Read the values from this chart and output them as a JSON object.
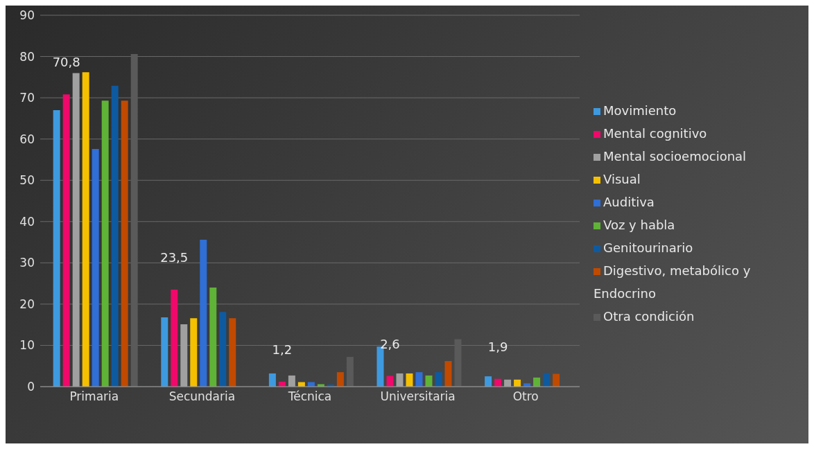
{
  "chart_data": {
    "type": "bar",
    "categories": [
      "Primaria",
      "Secundaria",
      "Técnica",
      "Universitaria",
      "Otro"
    ],
    "series": [
      {
        "name": "Movimiento",
        "color": "#3e9ae0",
        "values": [
          67,
          16.8,
          3.2,
          9.7,
          2.5
        ]
      },
      {
        "name": "Mental cognitivo",
        "color": "#f0086a",
        "values": [
          70.8,
          23.5,
          1.2,
          2.6,
          1.9
        ],
        "value_labels": [
          "70,8",
          "23,5",
          "1,2",
          "2,6",
          "1,9"
        ]
      },
      {
        "name": "Mental socioemocional",
        "color": "#a0a0a0",
        "values": [
          76,
          15.1,
          2.7,
          3.2,
          1.7
        ]
      },
      {
        "name": "Visual",
        "color": "#f5c000",
        "values": [
          76.2,
          16.6,
          1.1,
          3.2,
          1.7
        ]
      },
      {
        "name": "Auditiva",
        "color": "#2f6fd6",
        "values": [
          57.6,
          35.6,
          1.1,
          3.5,
          0.8
        ]
      },
      {
        "name": "Voz y habla",
        "color": "#5fb336",
        "values": [
          69.3,
          24,
          0.6,
          2.7,
          2.2
        ]
      },
      {
        "name": "Genitourinario",
        "color": "#0e5aa0",
        "values": [
          72.9,
          18.1,
          0.5,
          3.5,
          3.3
        ]
      },
      {
        "name": "Digestivo, metabólico y Endocrino",
        "color": "#c04a00",
        "values": [
          69.3,
          16.6,
          3.5,
          6.2,
          3.1
        ]
      },
      {
        "name": "Otra condición",
        "color": "#5a5a5a",
        "values": [
          80.6,
          0,
          7.2,
          11.5,
          0
        ]
      }
    ],
    "ylim": [
      0,
      90
    ],
    "yticks": [
      0,
      10,
      20,
      30,
      40,
      50,
      60,
      70,
      80,
      90
    ],
    "grid": "y",
    "legend": "right"
  }
}
